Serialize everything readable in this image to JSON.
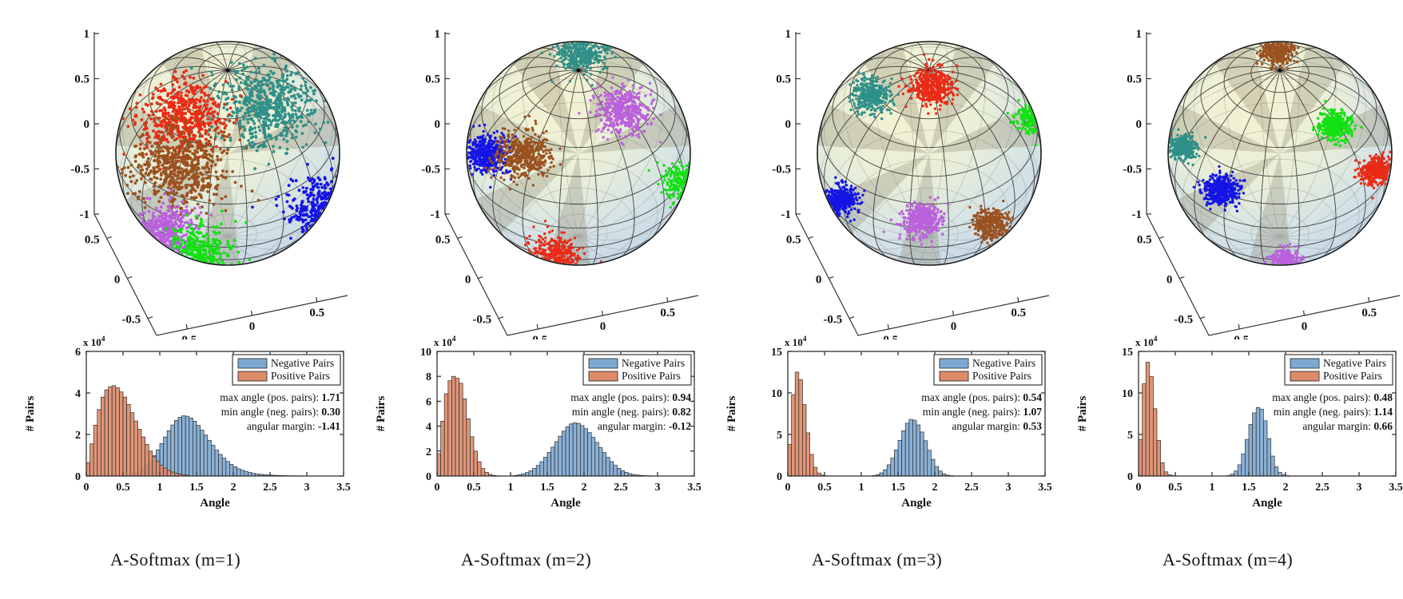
{
  "shared": {
    "legend": {
      "negative": "Negative Pairs",
      "positive": "Positive Pairs"
    },
    "stat_labels": {
      "max": "max angle (pos. pairs):",
      "min": "min angle (neg. pairs):",
      "margin": "angular margin:"
    },
    "hist": {
      "xlabel": "Angle",
      "ylabel": "# Pairs",
      "exponent_text": "x 10",
      "exponent_power": "4",
      "xticks": [
        0,
        0.5,
        1,
        1.5,
        2,
        2.5,
        3,
        3.5
      ],
      "bin_width": 0.05,
      "xlim": [
        0,
        3.5
      ]
    },
    "sphere_axes": {
      "zticks": [
        "1",
        "0.5",
        "0",
        "-0.5",
        "-1"
      ],
      "yticks": [
        "0.5",
        "0",
        "-0.5"
      ],
      "xticks": [
        "-0.5",
        "0",
        "0.5"
      ]
    },
    "colors": {
      "negative_fill": "#7da9d1",
      "positive_fill": "#dd8a68",
      "bar_edge": "#2d2d2d",
      "axis": "#333333",
      "clusters": {
        "teal": "#2e9088",
        "red": "#ea2b16",
        "brown": "#9a5220",
        "violet": "#bb60dd",
        "green": "#12e112",
        "blue": "#1414e6"
      }
    }
  },
  "chart_data": [
    {
      "type": "histogram+scatter3d",
      "title": "A-Softmax (m=1)",
      "xlabel": "Angle",
      "ylabel": "# Pairs",
      "y_scale": "1e4",
      "xlim": [
        0,
        3.5
      ],
      "ylim": [
        0,
        6
      ],
      "yticks": [
        0,
        2,
        4,
        6
      ],
      "stats": {
        "max_pos": "1.71",
        "min_neg": "0.30",
        "margin": "-1.41"
      },
      "positive": {
        "offset": 0,
        "heights": [
          0.65,
          1.55,
          2.45,
          3.2,
          3.8,
          4.15,
          4.3,
          4.35,
          4.25,
          4.05,
          3.8,
          3.45,
          3.05,
          2.65,
          2.25,
          1.88,
          1.52,
          1.2,
          0.93,
          0.7,
          0.52,
          0.38,
          0.27,
          0.19,
          0.13,
          0.09,
          0.06,
          0.04
        ]
      },
      "negative": {
        "offset": 11,
        "heights": [
          0.03,
          0.07,
          0.13,
          0.22,
          0.35,
          0.52,
          0.73,
          0.98,
          1.26,
          1.56,
          1.88,
          2.18,
          2.46,
          2.68,
          2.83,
          2.9,
          2.88,
          2.79,
          2.64,
          2.44,
          2.21,
          1.97,
          1.72,
          1.48,
          1.25,
          1.04,
          0.86,
          0.7,
          0.56,
          0.45,
          0.35,
          0.28,
          0.22,
          0.17,
          0.13,
          0.1,
          0.08,
          0.06,
          0.05,
          0.04,
          0.03,
          0.025,
          0.02,
          0.015,
          0.012,
          0.01,
          0.008,
          0.006,
          0.005,
          0.004,
          0.003,
          0.003,
          0.002,
          0.002
        ]
      },
      "sphere_clusters": [
        {
          "color": "teal",
          "x": 0.36,
          "y": -0.42,
          "spread": 0.42,
          "n": 600
        },
        {
          "color": "red",
          "x": -0.4,
          "y": -0.32,
          "spread": 0.36,
          "n": 520
        },
        {
          "color": "brown",
          "x": -0.44,
          "y": 0.12,
          "spread": 0.42,
          "n": 620
        },
        {
          "color": "violet",
          "x": -0.55,
          "y": 0.68,
          "spread": 0.26,
          "n": 380
        },
        {
          "color": "green",
          "x": -0.25,
          "y": 0.92,
          "spread": 0.3,
          "n": 450
        },
        {
          "color": "blue",
          "x": 0.88,
          "y": 0.52,
          "spread": 0.34,
          "n": 520
        }
      ]
    },
    {
      "type": "histogram+scatter3d",
      "title": "A-Softmax (m=2)",
      "xlabel": "Angle",
      "ylabel": "# Pairs",
      "y_scale": "1e4",
      "xlim": [
        0,
        3.5
      ],
      "ylim": [
        0,
        10
      ],
      "yticks": [
        0,
        2,
        4,
        6,
        8,
        10
      ],
      "stats": {
        "max_pos": "0.94",
        "min_neg": "0.82",
        "margin": "-0.12"
      },
      "positive": {
        "offset": 0,
        "heights": [
          1.8,
          4.4,
          6.6,
          7.65,
          8.0,
          7.85,
          7.45,
          6.2,
          4.6,
          3.15,
          2.0,
          1.15,
          0.6,
          0.3,
          0.13,
          0.05,
          0.02
        ]
      },
      "negative": {
        "offset": 20,
        "heights": [
          0.02,
          0.05,
          0.1,
          0.17,
          0.28,
          0.42,
          0.61,
          0.85,
          1.15,
          1.5,
          1.9,
          2.32,
          2.76,
          3.2,
          3.6,
          3.95,
          4.18,
          4.27,
          4.22,
          4.05,
          3.8,
          3.48,
          3.1,
          2.7,
          2.28,
          1.88,
          1.5,
          1.16,
          0.86,
          0.62,
          0.43,
          0.29,
          0.19,
          0.12,
          0.08,
          0.05,
          0.03,
          0.02,
          0.013,
          0.008
        ]
      },
      "sphere_clusters": [
        {
          "color": "teal",
          "x": 0.02,
          "y": -0.92,
          "spread": 0.22,
          "n": 420
        },
        {
          "color": "violet",
          "x": 0.4,
          "y": -0.38,
          "spread": 0.24,
          "n": 420
        },
        {
          "color": "blue",
          "x": -0.82,
          "y": 0.0,
          "spread": 0.2,
          "n": 420
        },
        {
          "color": "brown",
          "x": -0.48,
          "y": 0.02,
          "spread": 0.24,
          "n": 430
        },
        {
          "color": "green",
          "x": 0.97,
          "y": 0.27,
          "spread": 0.2,
          "n": 380
        },
        {
          "color": "red",
          "x": -0.2,
          "y": 0.93,
          "spread": 0.22,
          "n": 400
        }
      ]
    },
    {
      "type": "histogram+scatter3d",
      "title": "A-Softmax (m=3)",
      "xlabel": "Angle",
      "ylabel": "# Pairs",
      "y_scale": "1e4",
      "xlim": [
        0,
        3.5
      ],
      "ylim": [
        0,
        15
      ],
      "yticks": [
        0,
        5,
        10,
        15
      ],
      "stats": {
        "max_pos": "0.54",
        "min_neg": "1.07",
        "margin": "0.53"
      },
      "positive": {
        "offset": 0,
        "heights": [
          3.8,
          9.8,
          12.5,
          11.6,
          8.6,
          5.2,
          2.6,
          1.05,
          0.36,
          0.11,
          0.03
        ]
      },
      "negative": {
        "offset": 23,
        "heights": [
          0.05,
          0.16,
          0.38,
          0.75,
          1.35,
          2.15,
          3.15,
          4.3,
          5.45,
          6.35,
          6.82,
          6.72,
          6.15,
          5.3,
          4.25,
          3.1,
          2.0,
          1.15,
          0.6,
          0.27,
          0.1,
          0.04
        ]
      },
      "sphere_clusters": [
        {
          "color": "teal",
          "x": -0.52,
          "y": -0.52,
          "spread": 0.16,
          "n": 340
        },
        {
          "color": "red",
          "x": 0.02,
          "y": -0.6,
          "spread": 0.19,
          "n": 420
        },
        {
          "color": "green",
          "x": 0.95,
          "y": -0.33,
          "spread": 0.16,
          "n": 330
        },
        {
          "color": "blue",
          "x": -0.8,
          "y": 0.42,
          "spread": 0.15,
          "n": 340
        },
        {
          "color": "violet",
          "x": -0.06,
          "y": 0.6,
          "spread": 0.17,
          "n": 360
        },
        {
          "color": "brown",
          "x": 0.55,
          "y": 0.63,
          "spread": 0.15,
          "n": 330
        }
      ]
    },
    {
      "type": "histogram+scatter3d",
      "title": "A-Softmax (m=4)",
      "xlabel": "Angle",
      "ylabel": "# Pairs",
      "y_scale": "1e4",
      "xlim": [
        0,
        3.5
      ],
      "ylim": [
        0,
        15
      ],
      "yticks": [
        0,
        5,
        10,
        15
      ],
      "stats": {
        "max_pos": "0.48",
        "min_neg": "1.14",
        "margin": "0.66"
      },
      "positive": {
        "offset": 0,
        "heights": [
          4.4,
          11.1,
          13.7,
          12.0,
          8.1,
          4.3,
          1.6,
          0.5,
          0.15,
          0.04
        ]
      },
      "negative": {
        "offset": 24,
        "heights": [
          0.05,
          0.22,
          0.6,
          1.35,
          2.65,
          4.4,
          6.2,
          7.6,
          8.25,
          8.05,
          6.65,
          4.5,
          2.4,
          1.1,
          0.42,
          0.13,
          0.04
        ]
      },
      "sphere_clusters": [
        {
          "color": "brown",
          "x": -0.02,
          "y": -0.92,
          "spread": 0.15,
          "n": 330
        },
        {
          "color": "green",
          "x": 0.5,
          "y": -0.25,
          "spread": 0.15,
          "n": 330
        },
        {
          "color": "red",
          "x": 0.86,
          "y": 0.15,
          "spread": 0.14,
          "n": 340
        },
        {
          "color": "teal",
          "x": -0.87,
          "y": -0.06,
          "spread": 0.13,
          "n": 300
        },
        {
          "color": "blue",
          "x": -0.52,
          "y": 0.33,
          "spread": 0.15,
          "n": 360
        },
        {
          "color": "violet",
          "x": 0.04,
          "y": 0.97,
          "spread": 0.13,
          "n": 300
        }
      ]
    }
  ]
}
